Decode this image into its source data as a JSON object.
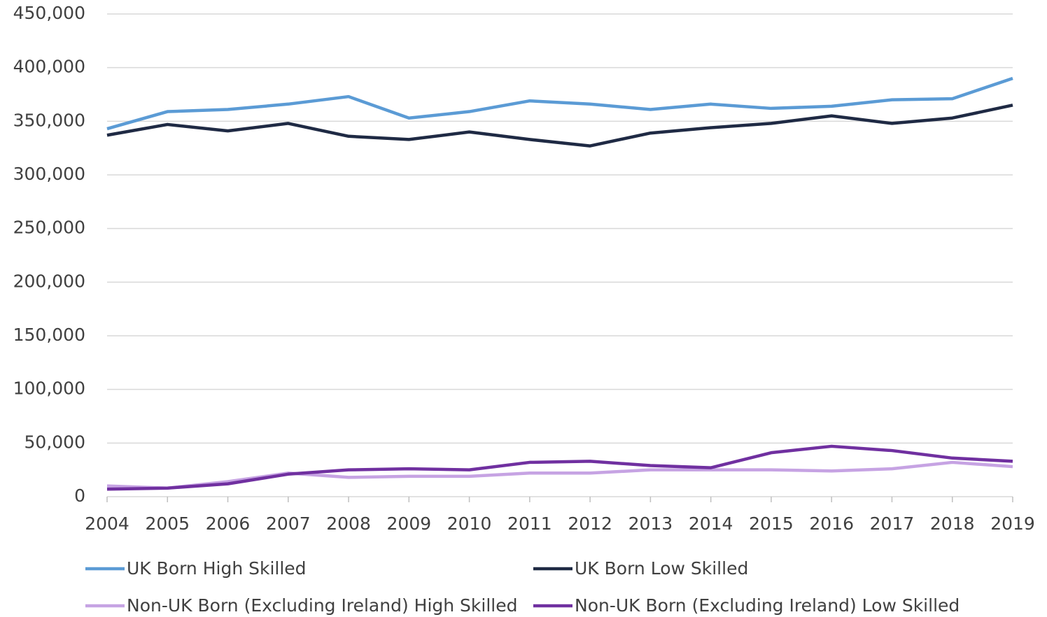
{
  "chart_data": {
    "type": "line",
    "x": [
      2004,
      2005,
      2006,
      2007,
      2008,
      2009,
      2010,
      2011,
      2012,
      2013,
      2014,
      2015,
      2016,
      2017,
      2018,
      2019
    ],
    "xlim": [
      2004,
      2019
    ],
    "ylim": [
      0,
      450000
    ],
    "yticks": [
      0,
      {
        "value": 50000,
        "label": "50,000"
      },
      {
        "value": 100000,
        "label": "100,000"
      },
      {
        "value": 150000,
        "label": "150,000"
      },
      {
        "value": 200000,
        "label": "200,000"
      },
      {
        "value": 250000,
        "label": "250,000"
      },
      {
        "value": 300000,
        "label": "300,000"
      },
      {
        "value": 350000,
        "label": "350,000"
      },
      {
        "value": 400000,
        "label": "400,000"
      },
      {
        "value": 450000,
        "label": "450,000"
      }
    ],
    "grid": true,
    "legend": "bottom",
    "series": [
      {
        "name": "UK Born High Skilled",
        "color": "#5b9bd5",
        "values": [
          343000,
          359000,
          361000,
          366000,
          373000,
          353000,
          359000,
          369000,
          366000,
          361000,
          366000,
          362000,
          364000,
          370000,
          371000,
          390000
        ]
      },
      {
        "name": "UK Born Low Skilled",
        "color": "#1f2a44",
        "values": [
          337000,
          347000,
          341000,
          348000,
          336000,
          333000,
          340000,
          333000,
          327000,
          339000,
          344000,
          348000,
          355000,
          348000,
          353000,
          365000
        ]
      },
      {
        "name": "Non-UK Born (Excluding Ireland) High Skilled",
        "color": "#c6a3e3",
        "values": [
          10000,
          8000,
          14000,
          22000,
          18000,
          19000,
          19000,
          22000,
          22000,
          25000,
          25000,
          25000,
          24000,
          26000,
          32000,
          28000
        ]
      },
      {
        "name": "Non-UK Born (Excluding Ireland) Low Skilled",
        "color": "#7030a0",
        "values": [
          7000,
          8000,
          12000,
          21000,
          25000,
          26000,
          25000,
          32000,
          33000,
          29000,
          27000,
          41000,
          47000,
          43000,
          36000,
          33000
        ]
      }
    ]
  }
}
